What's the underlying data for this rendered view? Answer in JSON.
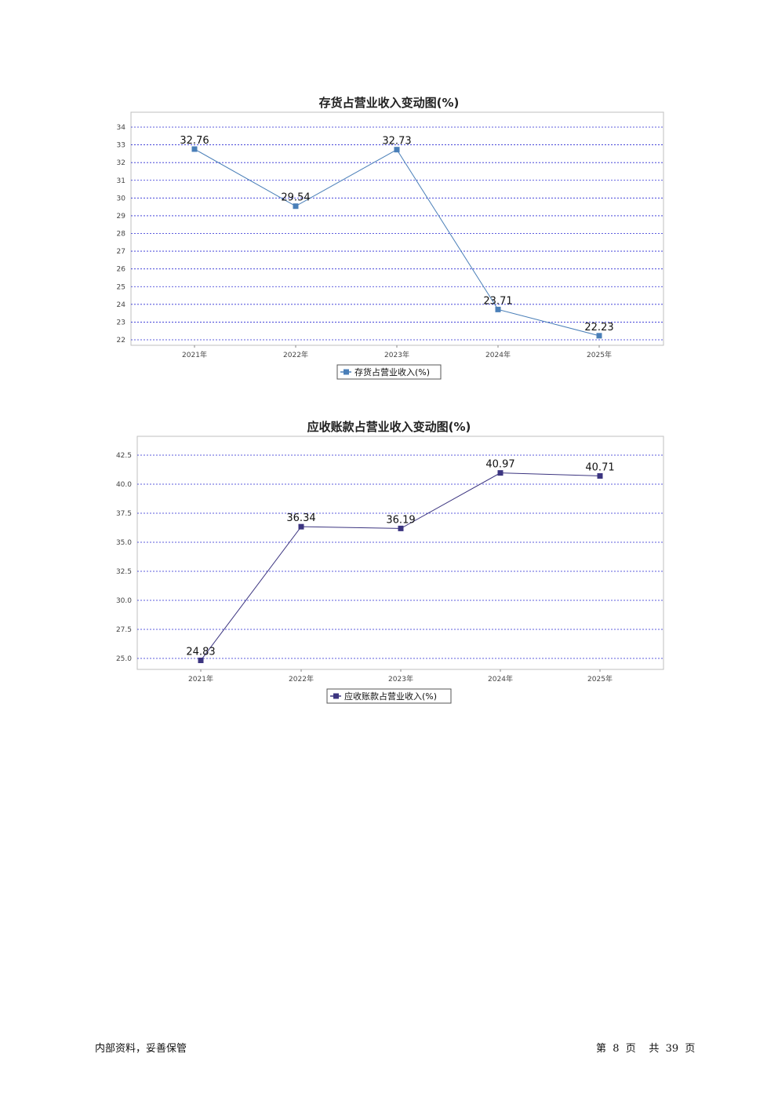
{
  "chart_data": [
    {
      "type": "line",
      "title": "存货占营业收入变动图(%)",
      "categories": [
        "2021年",
        "2022年",
        "2023年",
        "2024年",
        "2025年"
      ],
      "series": [
        {
          "name": "存货占营业收入(%)",
          "values": [
            32.76,
            29.54,
            32.73,
            23.71,
            22.23
          ],
          "color": "#4a7fb8"
        }
      ],
      "yticks": [
        "34",
        "33",
        "32",
        "31",
        "30",
        "29",
        "28",
        "27",
        "26",
        "25",
        "24",
        "23",
        "22"
      ],
      "ylim": [
        22,
        34
      ],
      "grid": true,
      "legend_position": "bottom"
    },
    {
      "type": "line",
      "title": "应收账款占营业收入变动图(%)",
      "categories": [
        "2021年",
        "2022年",
        "2023年",
        "2024年",
        "2025年"
      ],
      "series": [
        {
          "name": "应收账款占营业收入(%)",
          "values": [
            24.83,
            36.34,
            36.19,
            40.97,
            40.71
          ],
          "color": "#3c3580"
        }
      ],
      "yticks": [
        "42.5",
        "40.0",
        "37.5",
        "35.0",
        "32.5",
        "30.0",
        "27.5",
        "25.0"
      ],
      "ylim": [
        25.0,
        42.5
      ],
      "grid": true,
      "legend_position": "bottom"
    }
  ],
  "footer": {
    "left": "内部资料，妥善保管",
    "right": "第  8  页    共  39  页"
  },
  "colors": {
    "grid": "#2a2ad4",
    "axis": "#bfbfbf"
  }
}
